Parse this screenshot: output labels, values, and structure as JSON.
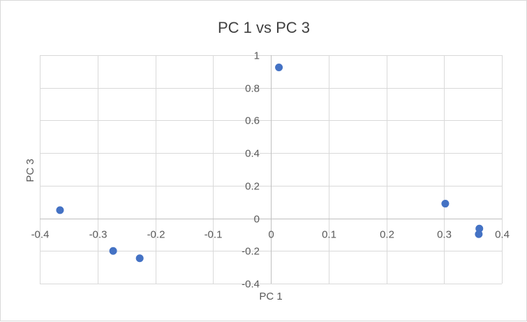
{
  "chart_data": {
    "type": "scatter",
    "title": "PC 1 vs PC 3",
    "xlabel": "PC 1",
    "ylabel": "PC 3",
    "xlim": [
      -0.4,
      0.4
    ],
    "ylim": [
      -0.4,
      1
    ],
    "x_ticks": [
      "-0.4",
      "-0.3",
      "-0.2",
      "-0.1",
      "0",
      "0.1",
      "0.2",
      "0.3",
      "0.4"
    ],
    "y_ticks": [
      "1",
      "0.8",
      "0.6",
      "0.4",
      "0.2",
      "0",
      "-0.2",
      "-0.4"
    ],
    "grid": true,
    "legend": "none",
    "color": "#4472c4",
    "series": [
      {
        "points": [
          {
            "x": -0.365,
            "y": 0.05
          },
          {
            "x": -0.273,
            "y": -0.2
          },
          {
            "x": -0.227,
            "y": -0.245
          },
          {
            "x": 0.014,
            "y": 0.925
          },
          {
            "x": 0.302,
            "y": 0.09
          },
          {
            "x": 0.361,
            "y": -0.063
          },
          {
            "x": 0.36,
            "y": -0.097
          }
        ]
      }
    ]
  }
}
